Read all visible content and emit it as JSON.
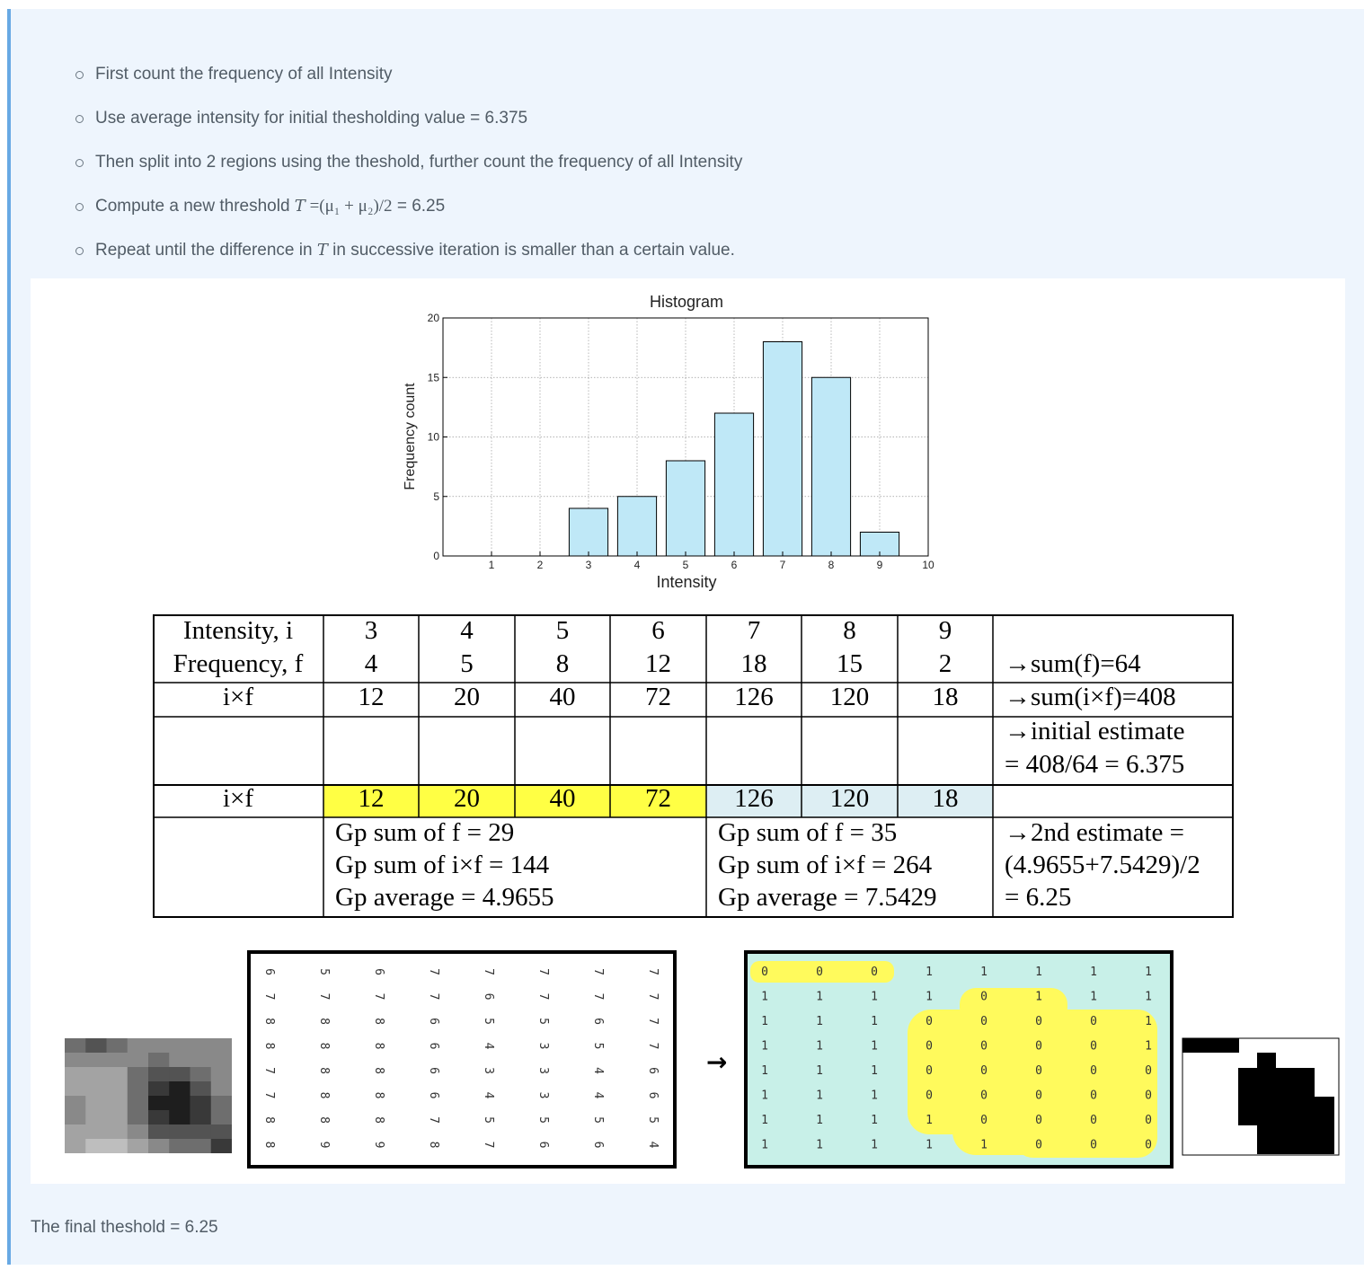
{
  "bullets": [
    {
      "text": "First count the frequency of all Intensity"
    },
    {
      "text": "Use average intensity for initial thesholding value = 6.375"
    },
    {
      "text": "Then split into 2 regions using the theshold, further count the frequency of all Intensity"
    },
    {
      "pre": "Compute a new threshold ",
      "math_var": "T",
      "math_expr": " =(μ₁ + μ₂)/2",
      "post": " = 6.25"
    },
    {
      "pre": "Repeat until the difference in ",
      "math_var": "T",
      "post": " in successive iteration is smaller than a certain value."
    }
  ],
  "chart_data": {
    "type": "bar",
    "title": "Histogram",
    "xlabel": "Intensity",
    "ylabel": "Frequency count",
    "x": [
      1,
      2,
      3,
      4,
      5,
      6,
      7,
      8,
      9
    ],
    "values": [
      0,
      0,
      4,
      5,
      8,
      12,
      18,
      15,
      2
    ],
    "xlim": [
      0,
      10
    ],
    "ylim": [
      0,
      20
    ],
    "xticks": [
      "1",
      "2",
      "3",
      "4",
      "5",
      "6",
      "7",
      "8",
      "9",
      "10"
    ],
    "yticks": [
      "0",
      "5",
      "10",
      "15",
      "20"
    ],
    "grid": true,
    "bar_color": "#bfe8f7"
  },
  "table": {
    "row_labels": [
      "Intensity, i",
      "Frequency, f",
      "i×f",
      "i×f"
    ],
    "intensity": [
      "3",
      "4",
      "5",
      "6",
      "7",
      "8",
      "9"
    ],
    "frequency": [
      "4",
      "5",
      "8",
      "12",
      "18",
      "15",
      "2"
    ],
    "ixf": [
      "12",
      "20",
      "40",
      "72",
      "126",
      "120",
      "18"
    ],
    "notes": [
      "→sum(f)=64",
      "→sum(i×f)=408",
      "→initial estimate",
      "= 408/64 = 6.375"
    ],
    "group1_color": "#ffff44",
    "group2_color": "#ddeef3",
    "group1": [
      "Gp sum of f = 29",
      "Gp sum of i×f = 144",
      "Gp average = 4.9655"
    ],
    "group2": [
      "Gp sum of f = 35",
      "Gp sum of i×f = 264",
      "Gp average = 7.5429"
    ],
    "estimate2": [
      "→2nd estimate =",
      "(4.9655+7.5429)/2",
      "= 6.25"
    ]
  },
  "pixel_grid": [
    [
      "6",
      "5",
      "6",
      "7",
      "7",
      "7",
      "7",
      "7"
    ],
    [
      "7",
      "7",
      "7",
      "7",
      "6",
      "7",
      "7",
      "7"
    ],
    [
      "8",
      "8",
      "8",
      "6",
      "5",
      "5",
      "6",
      "7"
    ],
    [
      "8",
      "8",
      "8",
      "6",
      "4",
      "3",
      "5",
      "7"
    ],
    [
      "7",
      "8",
      "8",
      "6",
      "3",
      "3",
      "4",
      "6"
    ],
    [
      "7",
      "8",
      "8",
      "6",
      "4",
      "3",
      "4",
      "6"
    ],
    [
      "8",
      "8",
      "8",
      "7",
      "5",
      "5",
      "5",
      "5"
    ],
    [
      "8",
      "9",
      "9",
      "8",
      "7",
      "6",
      "6",
      "4"
    ]
  ],
  "binary_grid": [
    [
      "0",
      "0",
      "0",
      "1",
      "1",
      "1",
      "1",
      "1"
    ],
    [
      "1",
      "1",
      "1",
      "1",
      "0",
      "1",
      "1",
      "1"
    ],
    [
      "1",
      "1",
      "1",
      "0",
      "0",
      "0",
      "0",
      "1"
    ],
    [
      "1",
      "1",
      "1",
      "0",
      "0",
      "0",
      "0",
      "1"
    ],
    [
      "1",
      "1",
      "1",
      "0",
      "0",
      "0",
      "0",
      "0"
    ],
    [
      "1",
      "1",
      "1",
      "0",
      "0",
      "0",
      "0",
      "0"
    ],
    [
      "1",
      "1",
      "1",
      "1",
      "0",
      "0",
      "0",
      "0"
    ],
    [
      "1",
      "1",
      "1",
      "1",
      "1",
      "0",
      "0",
      "0"
    ]
  ],
  "arrow": "→",
  "final_text": "The final theshold = 6.25"
}
